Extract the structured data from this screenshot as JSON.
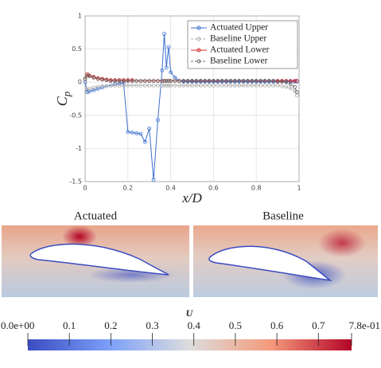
{
  "chart_data": {
    "type": "line",
    "xlabel": "x/D",
    "ylabel": "Cp",
    "x": [
      0,
      0.01,
      0.02,
      0.04,
      0.06,
      0.08,
      0.1,
      0.12,
      0.14,
      0.16,
      0.18,
      0.2,
      0.22,
      0.24,
      0.26,
      0.28,
      0.3,
      0.32,
      0.34,
      0.36,
      0.37,
      0.38,
      0.39,
      0.4,
      0.42,
      0.44,
      0.46,
      0.48,
      0.5,
      0.52,
      0.54,
      0.56,
      0.58,
      0.6,
      0.62,
      0.64,
      0.66,
      0.68,
      0.7,
      0.72,
      0.74,
      0.76,
      0.78,
      0.8,
      0.82,
      0.84,
      0.86,
      0.88,
      0.9,
      0.92,
      0.94,
      0.96,
      0.98,
      0.99
    ],
    "series": [
      {
        "name": "Actuated Upper",
        "color": "#3d6fd0",
        "linestyle": "solid",
        "values": [
          0,
          -0.15,
          -0.14,
          -0.12,
          -0.1,
          -0.08,
          -0.06,
          -0.05,
          -0.03,
          -0.02,
          -0.01,
          -0.75,
          -0.76,
          -0.77,
          -0.78,
          -0.9,
          -0.7,
          -1.47,
          -0.57,
          0.18,
          0.73,
          0.22,
          0.53,
          0.15,
          0.07,
          0.02,
          0.01,
          0.01,
          0.01,
          0.01,
          0.01,
          0.01,
          0.01,
          0.01,
          0.01,
          0.01,
          0.01,
          0.01,
          0.01,
          0.01,
          0.01,
          0.01,
          0.01,
          0.01,
          0.01,
          0.01,
          0.01,
          0.01,
          0.01,
          0.01,
          0.01,
          0.01,
          0.01,
          0.01
        ]
      },
      {
        "name": "Baseline Upper",
        "color": "#aaaaaa",
        "linestyle": "dashed",
        "values": [
          0.05,
          -0.12,
          -0.1,
          -0.08,
          -0.07,
          -0.06,
          -0.06,
          -0.05,
          -0.05,
          -0.05,
          -0.05,
          -0.05,
          -0.05,
          -0.05,
          -0.05,
          -0.05,
          -0.05,
          -0.05,
          -0.05,
          -0.05,
          -0.05,
          -0.05,
          -0.05,
          -0.05,
          -0.05,
          -0.05,
          -0.05,
          -0.05,
          -0.05,
          -0.05,
          -0.05,
          -0.05,
          -0.05,
          -0.05,
          -0.05,
          -0.05,
          -0.05,
          -0.05,
          -0.05,
          -0.05,
          -0.05,
          -0.05,
          -0.05,
          -0.05,
          -0.05,
          -0.05,
          -0.05,
          -0.05,
          -0.05,
          -0.06,
          -0.07,
          -0.09,
          -0.13,
          -0.2
        ]
      },
      {
        "name": "Actuated Lower",
        "color": "#d62a2a",
        "linestyle": "solid",
        "values": [
          0.05,
          0.12,
          0.1,
          0.08,
          0.06,
          0.05,
          0.04,
          0.03,
          0.03,
          0.03,
          0.03,
          0.03,
          0.03,
          0.02,
          0.02,
          0.02,
          0.02,
          0.02,
          0.02,
          0.02,
          0.02,
          0.02,
          0.02,
          0.02,
          0.02,
          0.02,
          0.02,
          0.02,
          0.02,
          0.02,
          0.02,
          0.02,
          0.02,
          0.02,
          0.02,
          0.02,
          0.02,
          0.02,
          0.02,
          0.02,
          0.02,
          0.02,
          0.02,
          0.02,
          0.02,
          0.02,
          0.02,
          0.02,
          0.02,
          0.02,
          0.02,
          0.02,
          0.02,
          0.02
        ]
      },
      {
        "name": "Baseline Lower",
        "color": "#666666",
        "linestyle": "dashed",
        "values": [
          0.05,
          0.1,
          0.09,
          0.07,
          0.05,
          0.04,
          0.03,
          0.02,
          0.02,
          0.02,
          0.02,
          0.02,
          0.02,
          0.02,
          0.02,
          0.02,
          0.02,
          0.02,
          0.02,
          0.02,
          0.02,
          0.02,
          0.02,
          0.02,
          0.02,
          0.02,
          0.02,
          0.02,
          0.02,
          0.02,
          0.02,
          0.02,
          0.02,
          0.02,
          0.02,
          0.02,
          0.02,
          0.02,
          0.02,
          0.02,
          0.02,
          0.02,
          0.02,
          0.02,
          0.02,
          0.02,
          0.02,
          0.02,
          0.01,
          0.01,
          0,
          -0.03,
          -0.07,
          -0.15
        ]
      }
    ],
    "xlim": [
      0,
      1
    ],
    "ylim": [
      -1.5,
      1
    ],
    "xticks": [
      0,
      0.2,
      0.4,
      0.6,
      0.8,
      1
    ],
    "yticks": [
      -1.5,
      -1,
      -0.5,
      0,
      0.5,
      1
    ],
    "grid": true,
    "legend": "upper-right"
  },
  "panels": {
    "titles": [
      "Actuated",
      "Baseline"
    ]
  },
  "colorbar": {
    "label": "U",
    "lim": [
      0,
      0.78
    ],
    "ticks": [
      {
        "value": 0,
        "label": "0.0e+00"
      },
      0.1,
      0.2,
      0.3,
      0.4,
      0.5,
      0.6,
      0.7,
      {
        "value": 0.78,
        "label": "7.8e-01"
      }
    ]
  }
}
